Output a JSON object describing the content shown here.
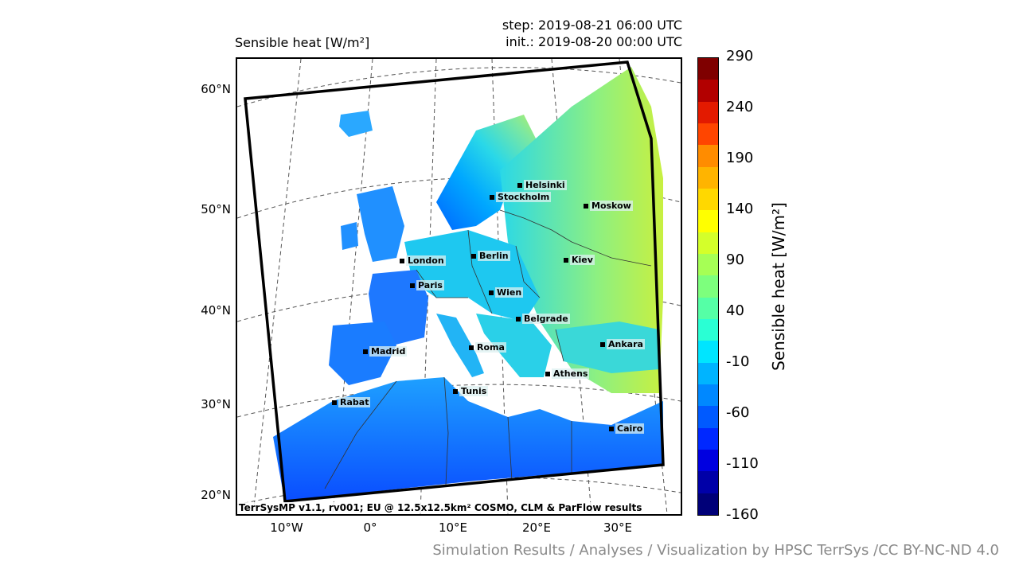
{
  "header": {
    "title": "Sensible heat [W/m²]",
    "step": "step: 2019-08-21 06:00 UTC",
    "init": "init.: 2019-08-20 00:00 UTC"
  },
  "lat_labels": [
    "60°N",
    "50°N",
    "40°N",
    "30°N",
    "20°N"
  ],
  "lon_labels": [
    "10°W",
    "0°",
    "10°E",
    "20°E",
    "30°E"
  ],
  "cities": [
    {
      "name": "Helsinki"
    },
    {
      "name": "Stockholm"
    },
    {
      "name": "Moskow"
    },
    {
      "name": "London"
    },
    {
      "name": "Berlin"
    },
    {
      "name": "Kiev"
    },
    {
      "name": "Paris"
    },
    {
      "name": "Wien"
    },
    {
      "name": "Belgrade"
    },
    {
      "name": "Madrid"
    },
    {
      "name": "Roma"
    },
    {
      "name": "Ankara"
    },
    {
      "name": "Athens"
    },
    {
      "name": "Tunis"
    },
    {
      "name": "Rabat"
    },
    {
      "name": "Cairo"
    }
  ],
  "credit": "TerrSysMP v1.1, rv001; EU @ 12.5x12.5km² COSMO, CLM & ParFlow results",
  "colorbar": {
    "label": "Sensible heat [W/m²]",
    "ticks": [
      "290",
      "240",
      "190",
      "140",
      "90",
      "40",
      "-10",
      "-60",
      "-110",
      "-160"
    ],
    "colors": [
      "#7f0000",
      "#b20000",
      "#e31a00",
      "#ff4500",
      "#ff8c00",
      "#ffb400",
      "#ffd800",
      "#ffff00",
      "#d4ff2a",
      "#a6ff55",
      "#7dff7d",
      "#55ffa6",
      "#2affd4",
      "#00e5ff",
      "#00b4ff",
      "#0088ff",
      "#005aff",
      "#0028ff",
      "#0000e0",
      "#0000a8",
      "#000078"
    ]
  },
  "footer": "Simulation Results / Analyses / Visualization by HPSC TerrSys /CC BY-NC-ND 4.0"
}
